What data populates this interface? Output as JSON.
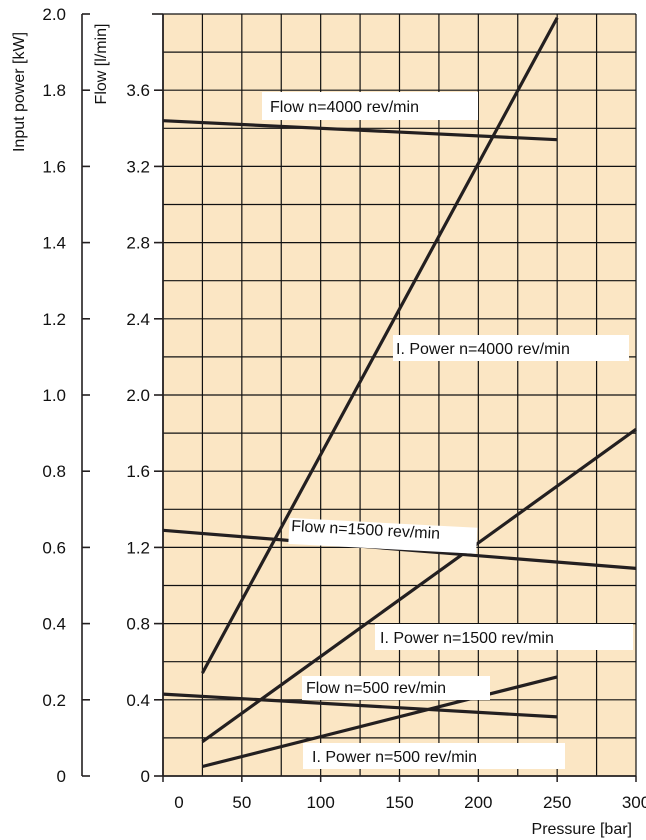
{
  "chart_data": {
    "type": "line",
    "xlabel": "Pressure [bar]",
    "ylabel_left": "Input power [kW]",
    "ylabel_right": "Flow [l/min]",
    "xlim": [
      0,
      300
    ],
    "ylim_power": [
      0,
      2.0
    ],
    "ylim_flow": [
      0,
      4.0
    ],
    "x_ticks": [
      "0",
      "50",
      "100",
      "150",
      "200",
      "250",
      "300"
    ],
    "y_power_ticks": [
      "0",
      "0.2",
      "0.4",
      "0.6",
      "0.8",
      "1.0",
      "1.2",
      "1.4",
      "1.6",
      "1.8",
      "2.0"
    ],
    "y_flow_ticks": [
      "0",
      "0.4",
      "0.8",
      "1.2",
      "1.6",
      "2.0",
      "2.4",
      "2.8",
      "3.2",
      "3.6"
    ],
    "grid": true,
    "colors": {
      "background": "#fbe6c4",
      "grid": "#111111",
      "line": "#231f20"
    },
    "series": [
      {
        "label": "Flow n=4000 rev/min",
        "axis": "flow",
        "x": [
          0,
          250
        ],
        "y": [
          3.44,
          3.34
        ]
      },
      {
        "label": "I. Power n=4000 rev/min",
        "axis": "power",
        "x": [
          25,
          250
        ],
        "y": [
          0.27,
          1.99
        ]
      },
      {
        "label": "Flow n=1500 rev/min",
        "axis": "flow",
        "x": [
          0,
          300
        ],
        "y": [
          1.29,
          1.09
        ]
      },
      {
        "label": "I. Power n=1500 rev/min",
        "axis": "power",
        "x": [
          25,
          300
        ],
        "y": [
          0.09,
          0.91
        ]
      },
      {
        "label": "Flow n=500 rev/min",
        "axis": "flow",
        "x": [
          0,
          250
        ],
        "y": [
          0.43,
          0.31
        ]
      },
      {
        "label": "I. Power n=500 rev/min",
        "axis": "power",
        "x": [
          25,
          250
        ],
        "y": [
          0.025,
          0.26
        ]
      }
    ]
  }
}
